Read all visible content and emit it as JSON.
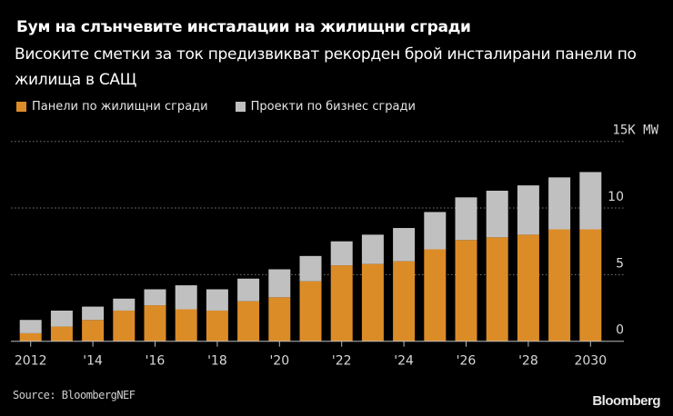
{
  "title": "Бум на слънчевите инсталации на жилищни сгради",
  "subtitle": "Високите сметки за ток предизвикват рекорден брой инсталирани панели по жилища в САЩ",
  "source": "Source: BloombergNEF",
  "logo": "Bloomberg",
  "colors": {
    "residential": "#dc8c27",
    "business": "#c0c0c0",
    "background": "#000000"
  },
  "chart_data": {
    "type": "bar",
    "stacked": true,
    "categories": [
      "2012",
      "2013",
      "2014",
      "2015",
      "2016",
      "2017",
      "2018",
      "2019",
      "2020",
      "2021",
      "2022",
      "2023",
      "2024",
      "2025",
      "2026",
      "2027",
      "2028",
      "2029",
      "2030"
    ],
    "x_tick_labels": [
      "2012",
      "'14",
      "'16",
      "'18",
      "'20",
      "'22",
      "'24",
      "'26",
      "'28",
      "2030"
    ],
    "series": [
      {
        "name": "Панели по жилищни сгради",
        "color": "#dc8c27",
        "values": [
          0.6,
          1.1,
          1.6,
          2.3,
          2.7,
          2.4,
          2.3,
          3.0,
          3.3,
          4.5,
          5.7,
          5.8,
          6.0,
          6.9,
          7.6,
          7.8,
          8.0,
          8.4,
          8.4
        ]
      },
      {
        "name": "Проекти по бизнес сгради",
        "color": "#c0c0c0",
        "values": [
          1.0,
          1.2,
          1.0,
          0.9,
          1.2,
          1.8,
          1.6,
          1.7,
          2.1,
          1.9,
          1.8,
          2.2,
          2.5,
          2.8,
          3.2,
          3.5,
          3.7,
          3.9,
          4.3
        ]
      }
    ],
    "y_ticks": [
      0,
      5,
      10,
      15
    ],
    "y_tick_labels": [
      "0",
      "5",
      "10",
      "15K MW"
    ],
    "ylim": [
      0,
      15
    ],
    "grid": true,
    "legend": "top-left",
    "y_axis_side": "right"
  }
}
